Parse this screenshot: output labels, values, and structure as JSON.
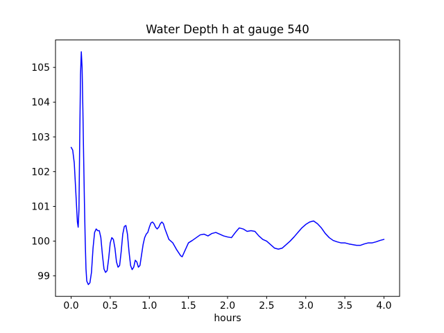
{
  "figure": {
    "background_color": "#ffffff",
    "axis_color": "#000000",
    "line_color": "#0000ff"
  },
  "chart_data": {
    "type": "line",
    "title": "Water Depth h at gauge 540",
    "xlabel": "hours",
    "ylabel": "",
    "grid": false,
    "legend": null,
    "xlim": [
      -0.2,
      4.2
    ],
    "ylim": [
      98.41,
      105.79
    ],
    "x_ticks": [
      0.0,
      0.5,
      1.0,
      1.5,
      2.0,
      2.5,
      3.0,
      3.5,
      4.0
    ],
    "x_tick_labels": [
      "0.0",
      "0.5",
      "1.0",
      "1.5",
      "2.0",
      "2.5",
      "3.0",
      "3.5",
      "4.0"
    ],
    "y_ticks": [
      99,
      100,
      101,
      102,
      103,
      104,
      105
    ],
    "y_tick_labels": [
      "99",
      "100",
      "101",
      "102",
      "103",
      "104",
      "105"
    ],
    "series": [
      {
        "name": "water depth h",
        "color": "#0000ff",
        "x": [
          0.0,
          0.02,
          0.04,
          0.06,
          0.08,
          0.09,
          0.1,
          0.11,
          0.12,
          0.13,
          0.14,
          0.15,
          0.16,
          0.17,
          0.18,
          0.19,
          0.2,
          0.22,
          0.24,
          0.26,
          0.28,
          0.3,
          0.32,
          0.34,
          0.36,
          0.38,
          0.4,
          0.42,
          0.44,
          0.46,
          0.48,
          0.5,
          0.52,
          0.54,
          0.56,
          0.58,
          0.6,
          0.62,
          0.64,
          0.66,
          0.68,
          0.7,
          0.72,
          0.74,
          0.76,
          0.78,
          0.8,
          0.82,
          0.84,
          0.86,
          0.88,
          0.9,
          0.92,
          0.94,
          0.96,
          0.98,
          1.0,
          1.02,
          1.04,
          1.06,
          1.08,
          1.1,
          1.12,
          1.14,
          1.16,
          1.18,
          1.2,
          1.25,
          1.3,
          1.35,
          1.4,
          1.42,
          1.45,
          1.5,
          1.55,
          1.6,
          1.65,
          1.7,
          1.75,
          1.8,
          1.85,
          1.9,
          1.95,
          2.0,
          2.05,
          2.1,
          2.15,
          2.2,
          2.25,
          2.3,
          2.35,
          2.4,
          2.45,
          2.5,
          2.55,
          2.6,
          2.65,
          2.7,
          2.75,
          2.8,
          2.85,
          2.9,
          2.95,
          3.0,
          3.05,
          3.1,
          3.15,
          3.2,
          3.25,
          3.3,
          3.35,
          3.4,
          3.45,
          3.5,
          3.55,
          3.6,
          3.65,
          3.7,
          3.75,
          3.8,
          3.85,
          3.9,
          3.95,
          4.0
        ],
        "y": [
          102.7,
          102.62,
          102.25,
          101.4,
          100.55,
          100.4,
          100.9,
          103.0,
          104.8,
          105.45,
          105.0,
          103.8,
          102.4,
          101.1,
          100.0,
          99.2,
          98.85,
          98.75,
          98.8,
          99.1,
          99.8,
          100.25,
          100.35,
          100.3,
          100.3,
          100.1,
          99.6,
          99.2,
          99.1,
          99.15,
          99.5,
          99.95,
          100.1,
          100.05,
          99.8,
          99.4,
          99.25,
          99.3,
          99.7,
          100.2,
          100.42,
          100.45,
          100.2,
          99.7,
          99.3,
          99.18,
          99.25,
          99.45,
          99.4,
          99.25,
          99.3,
          99.6,
          99.9,
          100.1,
          100.2,
          100.25,
          100.4,
          100.52,
          100.55,
          100.5,
          100.4,
          100.35,
          100.4,
          100.5,
          100.55,
          100.5,
          100.35,
          100.05,
          99.95,
          99.75,
          99.58,
          99.55,
          99.7,
          99.95,
          100.02,
          100.1,
          100.18,
          100.2,
          100.15,
          100.22,
          100.25,
          100.2,
          100.15,
          100.12,
          100.1,
          100.25,
          100.38,
          100.35,
          100.28,
          100.3,
          100.28,
          100.15,
          100.05,
          100.0,
          99.9,
          99.8,
          99.77,
          99.8,
          99.9,
          100.0,
          100.12,
          100.25,
          100.38,
          100.48,
          100.55,
          100.58,
          100.5,
          100.38,
          100.22,
          100.1,
          100.02,
          99.98,
          99.95,
          99.95,
          99.92,
          99.9,
          99.88,
          99.88,
          99.92,
          99.95,
          99.95,
          99.98,
          100.02,
          100.05
        ]
      }
    ]
  }
}
